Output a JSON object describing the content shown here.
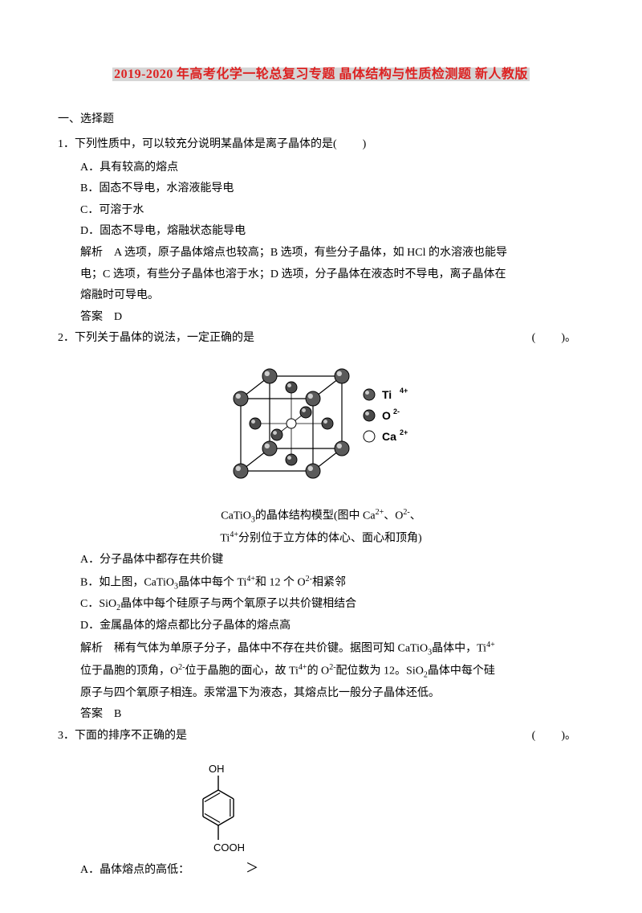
{
  "title": {
    "year": "2019-2020",
    "rest": "年高考化学一轮总复习专题 晶体结构与性质检测题 新人教版"
  },
  "section1": "一、选择题",
  "q1": {
    "stem_pre": "1．下列性质中，可以较充分说明某晶体是离子晶体的是(",
    "stem_post": ")",
    "A": "A．具有较高的熔点",
    "B": "B．固态不导电，水溶液能导电",
    "C": "C．可溶于水",
    "D": "D．固态不导电，熔融状态能导电",
    "exp1": "解析　A 选项，原子晶体熔点也较高；B 选项，有些分子晶体，如 HCl 的水溶液也能导",
    "exp2": "电；C 选项，有些分子晶体也溶于水；D 选项，分子晶体在液态时不导电，离子晶体在",
    "exp3": "熔融时可导电。",
    "ans": "答案　D"
  },
  "q2": {
    "stem_pre": "2．下列关于晶体的说法，一定正确的是",
    "stem_mid": "(",
    "stem_post": ")。",
    "legend": {
      "ti": "Ti",
      "ti_sup": "4+",
      "o": "O",
      "o_sup": "2-",
      "ca": "Ca",
      "ca_sup": "2+"
    },
    "cap1_a": "CaTiO",
    "cap1_b": "的晶体结构模型(图中 Ca",
    "cap1_c": "、O",
    "cap1_d": "、",
    "cap2_a": "Ti",
    "cap2_b": "分别位于立方体的体心、面心和顶角)",
    "A": "A．分子晶体中都存在共价键",
    "B_a": "B．如上图，CaTiO",
    "B_b": "晶体中每个 Ti",
    "B_c": "和 12 个 O",
    "B_d": "相紧邻",
    "C_a": "C．SiO",
    "C_b": "晶体中每个硅原子与两个氧原子以共价键相结合",
    "D": "D．金属晶体的熔点都比分子晶体的熔点高",
    "exp1_a": "解析　稀有气体为单原子分子，晶体中不存在共价键。据图可知 CaTiO",
    "exp1_b": "晶体中，Ti",
    "exp2_a": "位于晶胞的顶角，O",
    "exp2_b": "位于晶胞的面心，故 Ti",
    "exp2_c": "的 O",
    "exp2_d": "配位数为 12。SiO",
    "exp2_e": "晶体中每个硅",
    "exp3": "原子与四个氧原子相连。汞常温下为液态，其熔点比一般分子晶体还低。",
    "ans": "答案　B",
    "fig": {
      "corner_fill": "#5a5a5a",
      "face_fill": "#4a4a4a",
      "center_fill": "#ffffff",
      "stroke": "#000000",
      "bg": "#ffffff",
      "r_corner": 9,
      "r_face": 7,
      "r_center": 6
    }
  },
  "q3": {
    "stem_pre": "3．下面的排序不正确的是",
    "stem_mid": "(",
    "stem_post": ")。",
    "A_a": "A．晶体熔点的高低：",
    "A_b": "＞",
    "mol": {
      "oh": "OH",
      "cooh": "COOH",
      "stroke": "#000000",
      "fontsize": 13
    }
  }
}
